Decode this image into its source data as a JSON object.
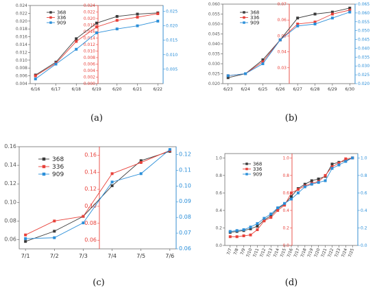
{
  "panel_labels": [
    "(a)",
    "(b)",
    "(c)",
    "(d)"
  ],
  "colors": {
    "368": "#3a3a3a",
    "336": "#e8413a",
    "909": "#2b8fd9",
    "axis_left": "#555555",
    "axis_mid": "#e8413a",
    "axis_right": "#2b8fd9"
  },
  "chart_data": [
    {
      "type": "line",
      "panel": "(a)",
      "legend_placement": "top-left",
      "grid": false,
      "categories": [
        "6/16",
        "6/17",
        "6/18",
        "6/19",
        "6/20",
        "6/21",
        "6/22"
      ],
      "axes": {
        "left": {
          "ylim": [
            0.004,
            0.024
          ],
          "ticks": [
            "0.004",
            "0.006",
            "0.008",
            "0.010",
            "0.012",
            "0.014",
            "0.016",
            "0.018",
            "0.020",
            "0.022",
            "0.024"
          ]
        },
        "mid": {
          "ylim": [
            0.0,
            0.024
          ],
          "ticks": [
            "0.000",
            "0.002",
            "0.004",
            "0.006",
            "0.008",
            "0.010",
            "0.012",
            "0.014",
            "0.016",
            "0.018",
            "0.020",
            "0.022",
            "0.024"
          ]
        },
        "right": {
          "ylim": [
            0.0,
            0.027
          ],
          "ticks": [
            "0.005",
            "0.010",
            "0.015",
            "0.020",
            "0.025"
          ]
        }
      },
      "series": [
        {
          "name": "368",
          "values": [
            0.0062,
            0.0095,
            0.0155,
            0.0195,
            0.0212,
            0.0218,
            0.0221
          ]
        },
        {
          "name": "336",
          "values": [
            0.006,
            0.0092,
            0.0148,
            0.0185,
            0.0202,
            0.021,
            0.0219
          ]
        },
        {
          "name": "909",
          "values": [
            0.0052,
            0.009,
            0.0128,
            0.017,
            0.018,
            0.0188,
            0.02
          ]
        }
      ]
    },
    {
      "type": "line",
      "panel": "(b)",
      "legend_placement": "top-left",
      "grid": false,
      "categories": [
        "6/23",
        "6/24",
        "6/25",
        "6/26",
        "6/27",
        "6/28",
        "6/29",
        "6/30"
      ],
      "axes": {
        "left": {
          "ylim": [
            0.02,
            0.06
          ],
          "ticks": [
            "0.020",
            "0.025",
            "0.030",
            "0.035",
            "0.040",
            "0.045",
            "0.050",
            "0.055",
            "0.060"
          ]
        },
        "mid": {
          "ylim": [
            0.02,
            0.07
          ],
          "ticks": [
            "0.03",
            "0.04",
            "0.05",
            "0.06",
            "0.07"
          ]
        },
        "right": {
          "ylim": [
            0.02,
            0.065
          ],
          "ticks": [
            "0.020",
            "0.025",
            "0.030",
            "0.035",
            "0.040",
            "0.045",
            "0.050",
            "0.055",
            "0.060",
            "0.065"
          ]
        }
      },
      "series": [
        {
          "name": "368",
          "values": [
            0.023,
            0.025,
            0.032,
            0.042,
            0.053,
            0.055,
            0.056,
            0.058
          ]
        },
        {
          "name": "336",
          "values": [
            0.024,
            0.025,
            0.031,
            0.042,
            0.05,
            0.051,
            0.055,
            0.057
          ]
        },
        {
          "name": "909",
          "values": [
            0.024,
            0.025,
            0.03,
            0.042,
            0.049,
            0.05,
            0.053,
            0.056
          ]
        }
      ]
    },
    {
      "type": "line",
      "panel": "(c)",
      "legend_placement": "top-left",
      "grid": false,
      "categories": [
        "7/1",
        "7/2",
        "7/3",
        "7/4",
        "7/5",
        "7/6"
      ],
      "axes": {
        "left": {
          "ylim": [
            0.05,
            0.16
          ],
          "ticks": [
            "0.06",
            "0.08",
            "0.10",
            "0.12",
            "0.14",
            "0.16"
          ]
        },
        "mid": {
          "ylim": [
            0.05,
            0.17
          ],
          "ticks": [
            "0.06",
            "0.08",
            "0.10",
            "0.12",
            "0.14",
            "0.16"
          ]
        },
        "right": {
          "ylim": [
            0.06,
            0.125
          ],
          "ticks": [
            "0.06",
            "0.07",
            "0.08",
            "0.09",
            "0.10",
            "0.11",
            "0.12"
          ]
        }
      },
      "series": [
        {
          "name": "368",
          "values": [
            0.058,
            0.069,
            0.085,
            0.118,
            0.145,
            0.155
          ]
        },
        {
          "name": "336",
          "values": [
            0.065,
            0.08,
            0.085,
            0.131,
            0.143,
            0.156
          ]
        },
        {
          "name": "909",
          "values": [
            0.061,
            0.062,
            0.078,
            0.122,
            0.131,
            0.157
          ]
        }
      ]
    },
    {
      "type": "line",
      "panel": "(d)",
      "legend_placement": "top-left",
      "grid": false,
      "categories": [
        "7/7",
        "7/8",
        "7/9",
        "7/10",
        "7/11",
        "7/12",
        "7/13",
        "7/14",
        "7/15",
        "7/16",
        "7/17",
        "7/18",
        "7/19",
        "7/20",
        "7/21",
        "7/22",
        "7/23",
        "7/24",
        "7/25"
      ],
      "axes": {
        "left": {
          "ylim": [
            0.0,
            1.05
          ],
          "ticks": [
            "0.0",
            "0.2",
            "0.4",
            "0.6",
            "0.8",
            "1.0"
          ]
        },
        "mid": {
          "ylim": [
            0.0,
            1.05
          ],
          "ticks": [
            "0.0",
            "0.2",
            "0.4",
            "0.6",
            "0.8",
            "1.0"
          ]
        },
        "right": {
          "ylim": [
            0.0,
            1.05
          ],
          "ticks": [
            "0.0",
            "0.2",
            "0.4",
            "0.6",
            "0.8",
            "1.0"
          ]
        }
      },
      "series": [
        {
          "name": "368",
          "values": [
            0.15,
            0.16,
            0.17,
            0.19,
            0.22,
            0.29,
            0.34,
            0.42,
            0.47,
            0.56,
            0.65,
            0.7,
            0.74,
            0.76,
            0.79,
            0.93,
            0.95,
            0.97,
            1.0
          ]
        },
        {
          "name": "336",
          "values": [
            0.1,
            0.1,
            0.11,
            0.12,
            0.18,
            0.28,
            0.32,
            0.4,
            0.46,
            0.6,
            0.64,
            0.68,
            0.71,
            0.73,
            0.8,
            0.9,
            0.94,
            0.99,
            1.0
          ]
        },
        {
          "name": "909",
          "values": [
            0.16,
            0.17,
            0.18,
            0.21,
            0.25,
            0.31,
            0.36,
            0.43,
            0.48,
            0.53,
            0.6,
            0.67,
            0.7,
            0.72,
            0.74,
            0.88,
            0.92,
            0.96,
            1.0
          ]
        }
      ]
    }
  ]
}
